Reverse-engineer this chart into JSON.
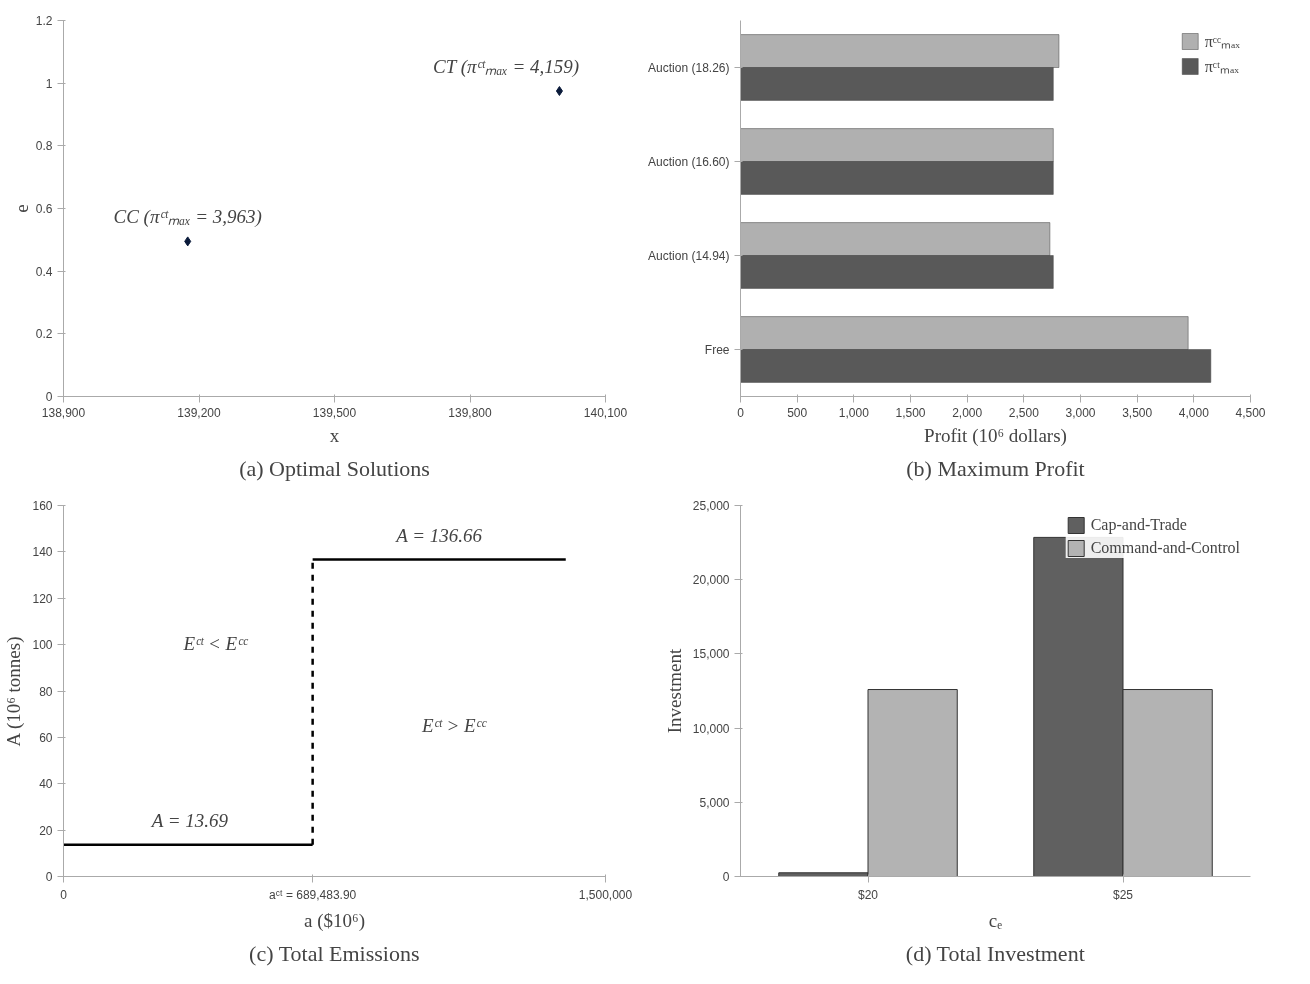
{
  "chart_data": [
    {
      "type": "scatter",
      "title": "(a) Optimal Solutions",
      "xlabel": "x",
      "ylabel": "e",
      "marker": "diamond",
      "grid": false,
      "legend": false,
      "series": [
        {
          "color": "#0a1a3a",
          "x": [
            139175,
            139998
          ],
          "values": [
            0.495,
            0.975
          ]
        }
      ],
      "xlim": [
        138900,
        140100
      ],
      "xticks": [
        {
          "value": 138900,
          "label": "138,900"
        },
        {
          "value": 139200,
          "label": "139,200"
        },
        {
          "value": 139500,
          "label": "139,500"
        },
        {
          "value": 139800,
          "label": "139,800"
        },
        {
          "value": 140100,
          "label": "140,100"
        }
      ],
      "ylim": [
        0,
        1.2
      ],
      "yticks": [
        0,
        0.2,
        0.4,
        0.6,
        0.8,
        1,
        1.2
      ],
      "annotations": [
        {
          "text": "CC (πᶜᵗₘₐₓ = 3,963)",
          "x": 139175,
          "y": 0.495
        },
        {
          "text": "CT (πᶜᵗₘₐₓ = 4,159)",
          "x": 139998,
          "y": 0.975
        }
      ]
    },
    {
      "type": "bar",
      "orientation": "horizontal",
      "title": "(b) Maximum Profit",
      "xlabel": "Profit (10⁶ dollars)",
      "grid": false,
      "legend": "top right",
      "categories": [
        "Auction (18.26)",
        "Auction (16.60)",
        "Auction (14.94)",
        "Free"
      ],
      "series": [
        {
          "name": "πᶜᶜₘₐₓ",
          "color": "#b0b0b0",
          "values": [
            2810,
            2760,
            2730,
            3950
          ]
        },
        {
          "name": "πᶜᵗₘₐₓ",
          "color": "#595959",
          "values": [
            2760,
            2760,
            2760,
            4150
          ]
        }
      ],
      "xlim": [
        0,
        4500
      ],
      "xticks": [
        0,
        500,
        {
          "value": 1000,
          "label": "1,000"
        },
        {
          "value": 1500,
          "label": "1,500"
        },
        {
          "value": 2000,
          "label": "2,000"
        },
        {
          "value": 2500,
          "label": "2,500"
        },
        {
          "value": 3000,
          "label": "3,000"
        },
        {
          "value": 3500,
          "label": "3,500"
        },
        {
          "value": 4000,
          "label": "4,000"
        },
        {
          "value": 4500,
          "label": "4,500"
        }
      ]
    },
    {
      "type": "line",
      "title": "(c) Total Emissions",
      "xlabel": "a ($10⁶)",
      "ylabel": "A (10⁶ tonnes)",
      "grid": false,
      "legend": false,
      "series": [
        {
          "color": "#000000",
          "x": [
            0,
            689483.9
          ],
          "values": [
            13.69,
            13.69
          ],
          "line_style": "solid"
        },
        {
          "color": "#000000",
          "x": [
            689483.9,
            689483.9
          ],
          "values": [
            13.69,
            136.66
          ],
          "line_style": "dashed"
        },
        {
          "color": "#000000",
          "x": [
            689483.9,
            1390000
          ],
          "values": [
            136.66,
            136.66
          ],
          "line_style": "solid"
        }
      ],
      "xlim": [
        0,
        1500000
      ],
      "xticks": [
        0,
        {
          "value": 689483.9,
          "label": "aᶜᵗ = 689,483.90"
        },
        {
          "value": 1500000,
          "label": "1,500,000"
        }
      ],
      "ylim": [
        0,
        160
      ],
      "yticks": [
        0,
        20,
        40,
        60,
        80,
        100,
        120,
        140,
        160
      ],
      "annotations": [
        {
          "text": "A = 13.69",
          "x": 350000,
          "y": 13.69
        },
        {
          "text": "A = 136.66",
          "x": 1040000,
          "y": 136.66
        },
        "Eᶜᵗ < Eᶜᶜ",
        "Eᶜᵗ > Eᶜᶜ"
      ]
    },
    {
      "type": "bar",
      "title": "(d) Total Investment",
      "xlabel": "cₑ",
      "ylabel": "Investment",
      "grid": false,
      "legend": "top right",
      "categories": [
        "$20",
        "$25"
      ],
      "series": [
        {
          "name": "Cap-and-Trade",
          "color": "#606060",
          "values": [
            250,
            22850
          ]
        },
        {
          "name": "Command-and-Control",
          "color": "#b3b3b3",
          "values": [
            12600,
            12600
          ]
        }
      ],
      "ylim": [
        0,
        25000
      ],
      "yticks": [
        0,
        {
          "value": 5000,
          "label": "5,000"
        },
        {
          "value": 10000,
          "label": "10,000"
        },
        {
          "value": 15000,
          "label": "15,000"
        },
        {
          "value": 20000,
          "label": "20,000"
        },
        {
          "value": 25000,
          "label": "25,000"
        }
      ]
    }
  ]
}
